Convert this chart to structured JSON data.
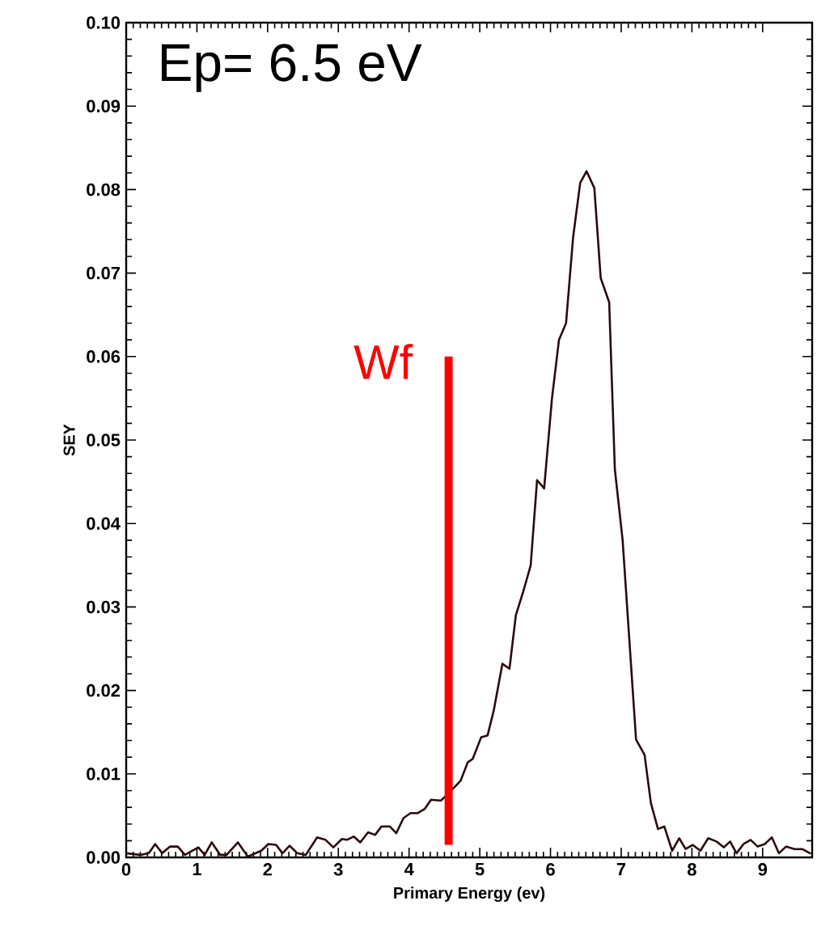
{
  "chart_data": {
    "type": "line",
    "xlabel": "Primary Energy (ev)",
    "ylabel": "SEY",
    "annotations": [
      "Ep= 6.5 eV"
    ],
    "xlim": [
      0,
      9.7
    ],
    "ylim": [
      0,
      0.1
    ],
    "xticks": [
      0,
      1,
      2,
      3,
      4,
      5,
      6,
      7,
      8,
      9
    ],
    "yticks": [
      {
        "value": 0,
        "label": "0.00"
      },
      {
        "value": 0.01,
        "label": "0.01"
      },
      {
        "value": 0.02,
        "label": "0.02"
      },
      {
        "value": 0.03,
        "label": "0.03"
      },
      {
        "value": 0.04,
        "label": "0.04"
      },
      {
        "value": 0.05,
        "label": "0.05"
      },
      {
        "value": 0.06,
        "label": "0.06"
      },
      {
        "value": 0.07,
        "label": "0.07"
      },
      {
        "value": 0.08,
        "label": "0.08"
      },
      {
        "value": 0.09,
        "label": "0.09"
      },
      {
        "value": 0.1,
        "label": "0.10"
      }
    ],
    "series": [
      {
        "color": "#2a0a0a",
        "x": [
          0,
          0.2,
          0.32,
          0.41,
          0.51,
          0.62,
          0.73,
          0.83,
          1.02,
          1.11,
          1.21,
          1.33,
          1.42,
          1.58,
          1.72,
          1.91,
          2.01,
          2.12,
          2.21,
          2.31,
          2.42,
          2.54,
          2.7,
          2.82,
          2.93,
          3.05,
          3.12,
          3.22,
          3.31,
          3.42,
          3.52,
          3.61,
          3.73,
          3.82,
          3.92,
          4.02,
          4.12,
          4.22,
          4.31,
          4.45,
          4.64,
          4.73,
          4.83,
          4.9,
          5.02,
          5.11,
          5.2,
          5.32,
          5.42,
          5.51,
          5.62,
          5.72,
          5.81,
          5.91,
          6.02,
          6.12,
          6.22,
          6.32,
          6.42,
          6.51,
          6.62,
          6.71,
          6.83,
          6.91,
          7.02,
          7.21,
          7.33,
          7.42,
          7.52,
          7.61,
          7.72,
          7.82,
          7.91,
          8.01,
          8.12,
          8.23,
          8.35,
          8.45,
          8.54,
          8.63,
          8.73,
          8.83,
          8.93,
          9.03,
          9.13,
          9.23,
          9.33,
          9.45,
          9.56,
          9.67
        ],
        "values": [
          0.0005,
          0.0003,
          0.0005,
          0.0016,
          0.0005,
          0.0013,
          0.0013,
          0.0003,
          0.0012,
          0.0003,
          0.0018,
          0.0003,
          0.0003,
          0.0018,
          0.0001,
          0.0008,
          0.0016,
          0.0015,
          0.0005,
          0.0014,
          0.0005,
          0.0003,
          0.0024,
          0.0021,
          0.0012,
          0.0022,
          0.0021,
          0.0025,
          0.0018,
          0.003,
          0.0027,
          0.0037,
          0.0037,
          0.0029,
          0.0047,
          0.0053,
          0.0053,
          0.0058,
          0.0069,
          0.0068,
          0.0084,
          0.0092,
          0.0114,
          0.0118,
          0.0144,
          0.0146,
          0.0177,
          0.0232,
          0.0226,
          0.029,
          0.032,
          0.035,
          0.0452,
          0.0442,
          0.0549,
          0.062,
          0.064,
          0.0743,
          0.0808,
          0.0822,
          0.0802,
          0.0694,
          0.0665,
          0.0465,
          0.038,
          0.0141,
          0.0123,
          0.0065,
          0.0034,
          0.0037,
          0.0008,
          0.0023,
          0.001,
          0.0015,
          0.0008,
          0.0023,
          0.0019,
          0.0012,
          0.0019,
          0.0005,
          0.0016,
          0.0021,
          0.0013,
          0.0016,
          0.0024,
          0.0005,
          0.0013,
          0.001,
          0.001,
          0.0005
        ]
      },
      {
        "name": "Wf",
        "color": "#ff0000",
        "x": [
          4.56,
          4.56
        ],
        "values": [
          0.0015,
          0.06
        ]
      }
    ]
  }
}
